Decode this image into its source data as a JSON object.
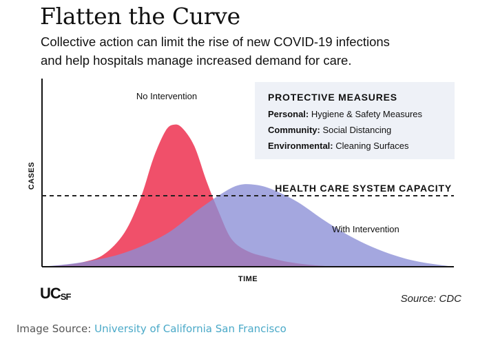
{
  "title": "Flatten the Curve",
  "subtitle_lines": [
    "Collective action can limit the rise of new COVID-19 infections",
    "and help hospitals manage increased demand for care."
  ],
  "logo": {
    "text": "UCSF"
  },
  "source_note": "Source: CDC",
  "caption": {
    "label": "Image Source: ",
    "link_text": "University of California San Francisco"
  },
  "colors": {
    "no_intervention": "#f0506a",
    "with_intervention": "#8a8ed6",
    "text": "#111111",
    "legend_box": "#eef1f7",
    "caption_link": "#4aa9c8"
  },
  "chart_data": {
    "type": "area",
    "title": "Flatten the Curve",
    "xlabel": "TIME",
    "ylabel": "CASES",
    "xlim": [
      0,
      100
    ],
    "ylim": [
      0,
      100
    ],
    "grid": false,
    "series": [
      {
        "name": "No Intervention",
        "points": [
          [
            0,
            0
          ],
          [
            5,
            1
          ],
          [
            10,
            3
          ],
          [
            15,
            8
          ],
          [
            20,
            22
          ],
          [
            24,
            45
          ],
          [
            27,
            70
          ],
          [
            30,
            88
          ],
          [
            32,
            92
          ],
          [
            34,
            90
          ],
          [
            37,
            78
          ],
          [
            40,
            55
          ],
          [
            43,
            35
          ],
          [
            46,
            18
          ],
          [
            50,
            10
          ],
          [
            55,
            6
          ],
          [
            60,
            3
          ],
          [
            66,
            1
          ],
          [
            72,
            0
          ]
        ]
      },
      {
        "name": "With Intervention",
        "points": [
          [
            0,
            0
          ],
          [
            10,
            3
          ],
          [
            20,
            9
          ],
          [
            30,
            21
          ],
          [
            38,
            37
          ],
          [
            44,
            48
          ],
          [
            48,
            53
          ],
          [
            52,
            53
          ],
          [
            56,
            50
          ],
          [
            62,
            42
          ],
          [
            68,
            31
          ],
          [
            74,
            21
          ],
          [
            80,
            13
          ],
          [
            86,
            7
          ],
          [
            92,
            3
          ],
          [
            100,
            0
          ]
        ]
      }
    ],
    "reference_line": {
      "label": "HEALTH CARE SYSTEM CAPACITY",
      "y": 46,
      "style": "dashed"
    },
    "legend": {
      "title": "PROTECTIVE MEASURES",
      "items": [
        {
          "key": "Personal:",
          "value": "Hygiene & Safety Measures"
        },
        {
          "key": "Community:",
          "value": "Social Distancing"
        },
        {
          "key": "Environmental:",
          "value": "Cleaning Surfaces"
        }
      ],
      "placement": "top-right"
    },
    "annotations": [
      "No Intervention",
      "With Intervention"
    ]
  }
}
